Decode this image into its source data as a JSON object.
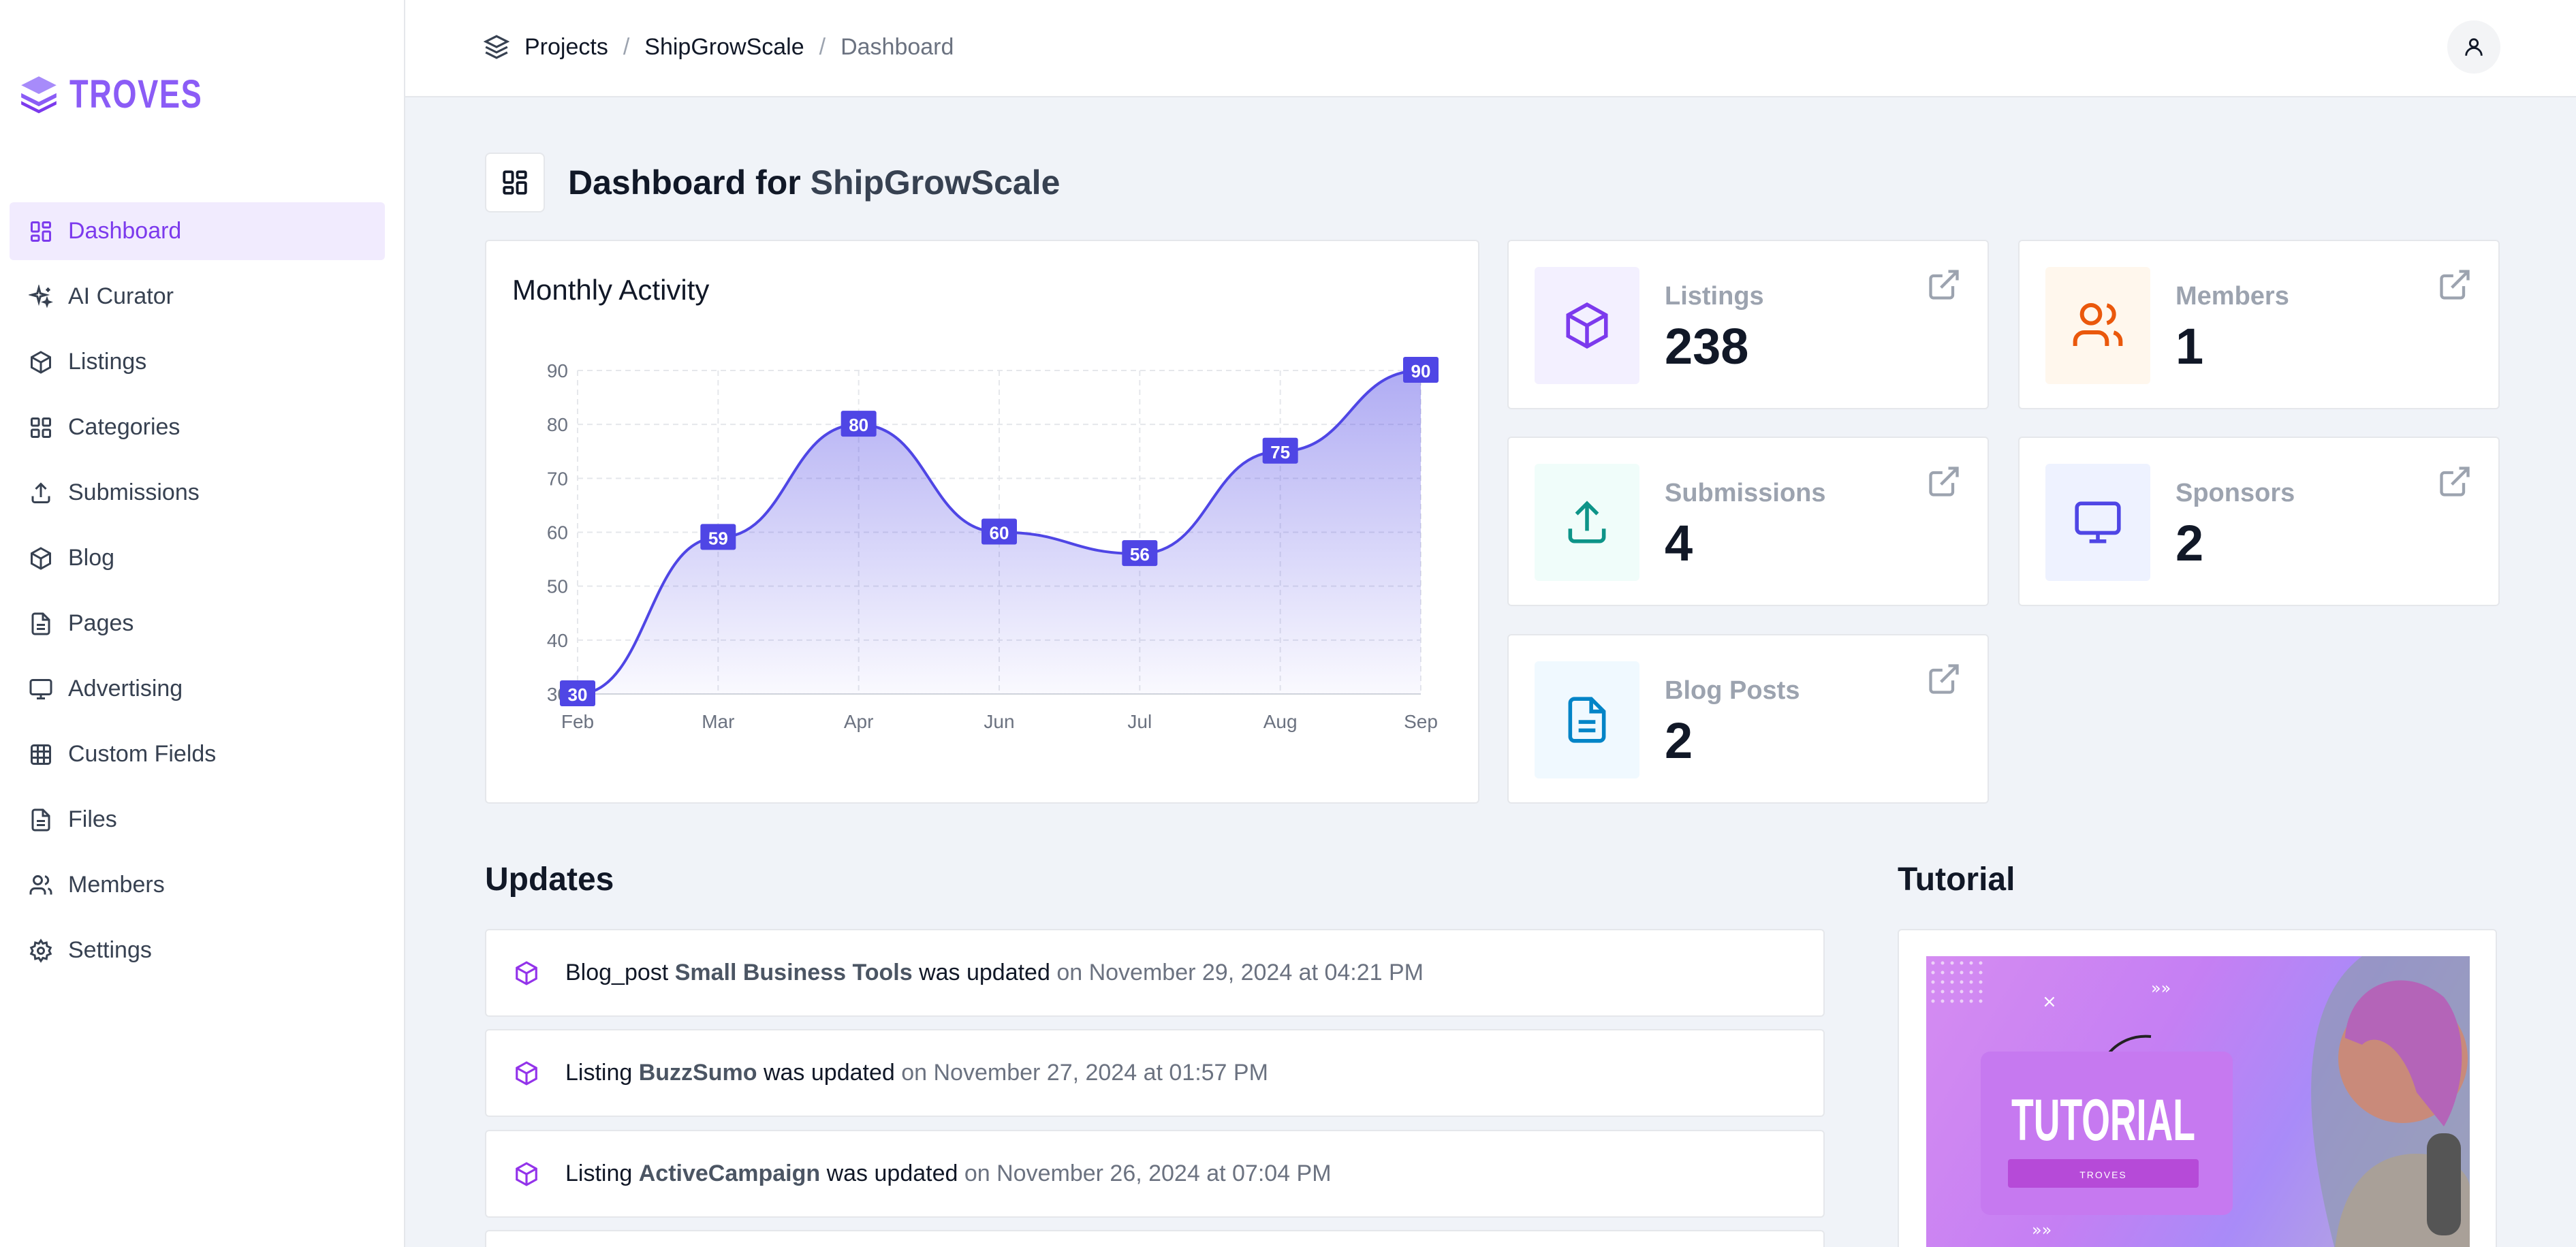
{
  "brand": {
    "name": "TROVES",
    "color": "#8b5cf6"
  },
  "sidebar": {
    "items": [
      {
        "label": "Dashboard",
        "icon": "dashboard-icon",
        "active": true
      },
      {
        "label": "AI Curator",
        "icon": "sparkles-icon"
      },
      {
        "label": "Listings",
        "icon": "cube-icon"
      },
      {
        "label": "Categories",
        "icon": "grid-icon"
      },
      {
        "label": "Submissions",
        "icon": "upload-icon"
      },
      {
        "label": "Blog",
        "icon": "cube-icon"
      },
      {
        "label": "Pages",
        "icon": "file-icon"
      },
      {
        "label": "Advertising",
        "icon": "monitor-icon"
      },
      {
        "label": "Custom Fields",
        "icon": "table-icon"
      },
      {
        "label": "Files",
        "icon": "file-icon"
      },
      {
        "label": "Members",
        "icon": "users-icon"
      },
      {
        "label": "Settings",
        "icon": "gear-icon"
      }
    ]
  },
  "breadcrumb": {
    "root": "Projects",
    "project": "ShipGrowScale",
    "current": "Dashboard"
  },
  "header": {
    "title_prefix": "Dashboard for",
    "project": "ShipGrowScale"
  },
  "chart": {
    "title": "Monthly Activity",
    "chart_data": {
      "type": "area",
      "x": [
        "Feb",
        "Mar",
        "Apr",
        "Jun",
        "Jul",
        "Aug",
        "Sep"
      ],
      "series": [
        {
          "values": [
            30,
            59,
            80,
            60,
            56,
            75,
            90
          ]
        }
      ],
      "ylim": [
        30,
        90
      ],
      "yticks": [
        30,
        40,
        50,
        60,
        70,
        80,
        90
      ],
      "grid": true,
      "data_labels": true,
      "color": "#4f46e5"
    }
  },
  "stats": [
    {
      "label": "Listings",
      "value": "238",
      "icon": "cube-icon",
      "color": "#7c3aed",
      "bg": "#f3f0ff"
    },
    {
      "label": "Members",
      "value": "1",
      "icon": "users-icon",
      "color": "#ea580c",
      "bg": "#fff7ed"
    },
    {
      "label": "Submissions",
      "value": "4",
      "icon": "upload-icon",
      "color": "#0d9488",
      "bg": "#f0fdfa"
    },
    {
      "label": "Sponsors",
      "value": "2",
      "icon": "monitor-icon",
      "color": "#4f46e5",
      "bg": "#eef2ff"
    },
    {
      "label": "Blog Posts",
      "value": "2",
      "icon": "file-icon",
      "color": "#0284c7",
      "bg": "#f0f9ff"
    }
  ],
  "updates_title": "Updates",
  "updates": [
    {
      "type": "Blog_post",
      "name": "Small Business Tools",
      "action": "was updated",
      "time": "on November 29, 2024 at 04:21 PM"
    },
    {
      "type": "Listing",
      "name": "BuzzSumo",
      "action": "was updated",
      "time": "on November 27, 2024 at 01:57 PM"
    },
    {
      "type": "Listing",
      "name": "ActiveCampaign",
      "action": "was updated",
      "time": "on November 26, 2024 at 07:04 PM"
    }
  ],
  "tutorial": {
    "title": "Tutorial",
    "thumb_text": "TUTORIAL",
    "thumb_sub": "TROVES"
  }
}
